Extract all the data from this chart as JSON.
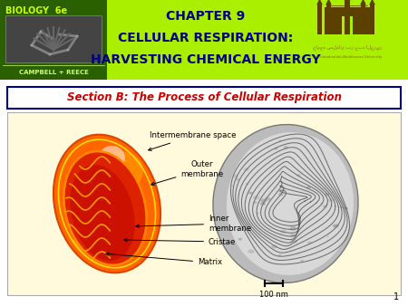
{
  "title_line1": "CHAPTER 9",
  "title_line2": "CELLULAR RESPIRATION:",
  "title_line3": "HARVESTING CHEMICAL ENERGY",
  "title_color": "#00008B",
  "header_bg_color": "#AAEE00",
  "biology_bg_color": "#2A6000",
  "biology_text": "BIOLOGY  6e",
  "biology_text_color": "#CCFF00",
  "campbell_text": "CAMPBELL + REECE",
  "campbell_text_color": "#CCFF66",
  "section_title": "Section B: The Process of Cellular Respiration",
  "section_title_color": "#CC0000",
  "section_border_color": "#000088",
  "slide_bg": "#FFFFFF",
  "content_bg": "#FFFADC",
  "scale_text": "100 nm",
  "page_num": "1",
  "label_color": "#000000",
  "univ_icon_color": "#5C4000",
  "univ_text_color": "#8B6914"
}
